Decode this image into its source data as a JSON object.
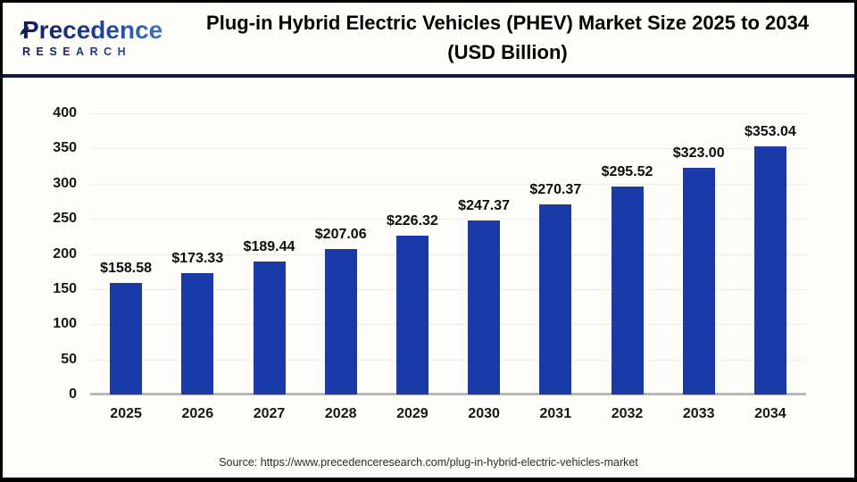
{
  "header": {
    "logo": {
      "line1": "Precedence",
      "line2": "RESEARCH"
    },
    "title_line1": "Plug-in Hybrid Electric Vehicles (PHEV) Market Size 2025 to 2034",
    "title_line2": "(USD Billion)"
  },
  "chart_data": {
    "type": "bar",
    "title": "Plug-in Hybrid Electric Vehicles (PHEV) Market Size 2025 to 2034 (USD Billion)",
    "categories": [
      "2025",
      "2026",
      "2027",
      "2028",
      "2029",
      "2030",
      "2031",
      "2032",
      "2033",
      "2034"
    ],
    "values": [
      158.58,
      173.33,
      189.44,
      207.06,
      226.32,
      247.37,
      270.37,
      295.52,
      323.0,
      353.04
    ],
    "value_labels": [
      "$158.58",
      "$173.33",
      "$189.44",
      "$207.06",
      "$226.32",
      "$247.37",
      "$270.37",
      "$295.52",
      "$323.00",
      "$353.04"
    ],
    "ylabel": "",
    "xlabel": "",
    "ylim": [
      0,
      400
    ],
    "ytick_step": 50,
    "grid": true,
    "legend_position": "none",
    "bar_color": "#1a3aa8"
  },
  "colors": {
    "bar": "#1a3aa8",
    "brand_navy": "#121d52",
    "brand_blue": "#3f7fd0",
    "divider": "#0d1a4a",
    "gridline": "#ececec",
    "axis_line": "#b9b9b9"
  },
  "footer": {
    "source": "Source: https://www.precedenceresearch.com/plug-in-hybrid-electric-vehicles-market"
  }
}
